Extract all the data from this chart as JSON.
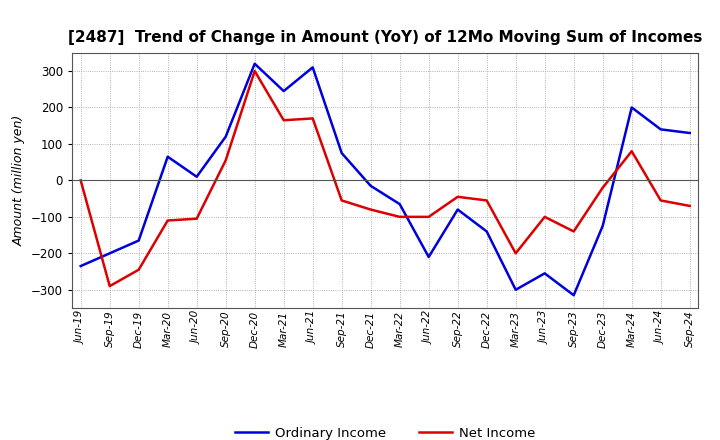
{
  "title": "[2487]  Trend of Change in Amount (YoY) of 12Mo Moving Sum of Incomes",
  "ylabel": "Amount (million yen)",
  "x_labels": [
    "Jun-19",
    "Sep-19",
    "Dec-19",
    "Mar-20",
    "Jun-20",
    "Sep-20",
    "Dec-20",
    "Mar-21",
    "Jun-21",
    "Sep-21",
    "Dec-21",
    "Mar-22",
    "Jun-22",
    "Sep-22",
    "Dec-22",
    "Mar-23",
    "Jun-23",
    "Sep-23",
    "Dec-23",
    "Mar-24",
    "Jun-24",
    "Sep-24"
  ],
  "ordinary_income": [
    -235,
    -200,
    -165,
    65,
    10,
    120,
    320,
    245,
    310,
    75,
    -15,
    -65,
    -210,
    -80,
    -140,
    -300,
    -255,
    -315,
    -125,
    200,
    140,
    130
  ],
  "net_income": [
    0,
    -290,
    -245,
    -110,
    -105,
    55,
    300,
    165,
    170,
    -55,
    -80,
    -100,
    -100,
    -45,
    -55,
    -200,
    -100,
    -140,
    -20,
    80,
    -55,
    -70
  ],
  "ordinary_income_color": "#0000dd",
  "net_income_color": "#dd0000",
  "background_color": "#ffffff",
  "grid_color": "#999999",
  "ylim": [
    -350,
    350
  ],
  "yticks": [
    -300,
    -200,
    -100,
    0,
    100,
    200,
    300
  ],
  "legend_labels": [
    "Ordinary Income",
    "Net Income"
  ]
}
